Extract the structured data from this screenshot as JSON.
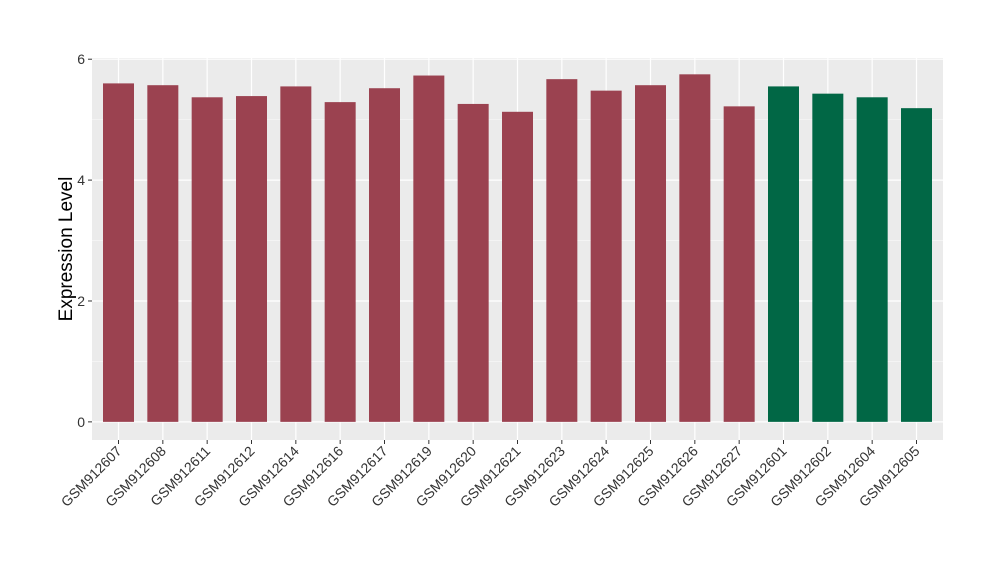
{
  "chart_data": {
    "type": "bar",
    "title": "",
    "xlabel": "",
    "ylabel": "Expression Level",
    "ylim": [
      -0.3,
      6.02
    ],
    "yticks": [
      0,
      2,
      4,
      6
    ],
    "grid": true,
    "background": "#EBEBEB",
    "categories": [
      "GSM912607",
      "GSM912608",
      "GSM912611",
      "GSM912612",
      "GSM912614",
      "GSM912616",
      "GSM912617",
      "GSM912619",
      "GSM912620",
      "GSM912621",
      "GSM912623",
      "GSM912624",
      "GSM912625",
      "GSM912626",
      "GSM912627",
      "GSM912601",
      "GSM912602",
      "GSM912604",
      "GSM912605"
    ],
    "values": [
      5.6,
      5.57,
      5.37,
      5.39,
      5.55,
      5.29,
      5.52,
      5.73,
      5.26,
      5.13,
      5.67,
      5.48,
      5.57,
      5.75,
      5.22,
      5.55,
      5.43,
      5.37,
      5.19
    ],
    "groups": [
      "A",
      "A",
      "A",
      "A",
      "A",
      "A",
      "A",
      "A",
      "A",
      "A",
      "A",
      "A",
      "A",
      "A",
      "A",
      "B",
      "B",
      "B",
      "B"
    ],
    "colors": {
      "A": "#9B4250",
      "B": "#016745"
    }
  }
}
